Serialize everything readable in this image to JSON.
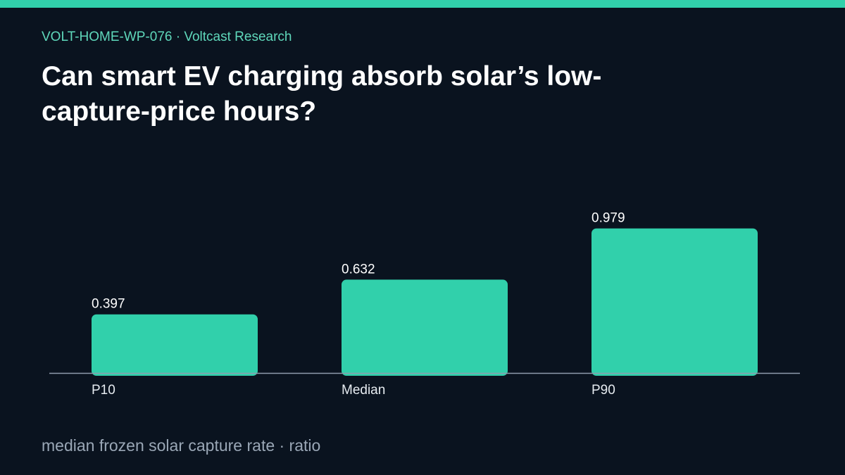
{
  "header": {
    "kicker": "VOLT-HOME-WP-076 · Voltcast Research",
    "title": "Can smart EV charging absorb solar’s low-capture-price hours?"
  },
  "footer": {
    "caption": "median frozen solar capture rate · ratio"
  },
  "colors": {
    "background": "#0a131f",
    "accent": "#31d0ab",
    "axis": "#8f9cae",
    "label": "#ffffff",
    "category": "#e6ebf0"
  },
  "chart_data": {
    "type": "bar",
    "categories": [
      "P10",
      "Median",
      "P90"
    ],
    "values": [
      0.397,
      0.632,
      0.979
    ],
    "value_labels": [
      "0.397",
      "0.632",
      "0.979"
    ],
    "ylim": [
      0,
      1.05
    ],
    "grid": false,
    "legend": "none"
  }
}
